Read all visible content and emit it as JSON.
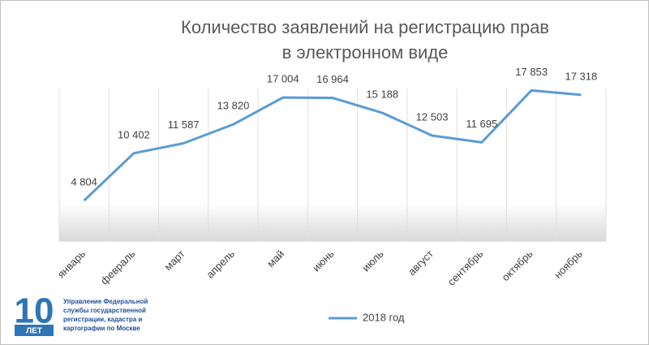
{
  "chart_data": {
    "type": "line",
    "title": [
      "Количество заявлений на регистрацию прав",
      "в электронном виде"
    ],
    "categories": [
      "январь",
      "февраль",
      "март",
      "апрель",
      "май",
      "июнь",
      "июль",
      "август",
      "сентябрь",
      "октябрь",
      "ноябрь"
    ],
    "series": [
      {
        "name": "2018 год",
        "color": "#5b9bd5",
        "values": [
          4804,
          10402,
          11587,
          13820,
          17004,
          16964,
          15188,
          12503,
          11695,
          17853,
          17318
        ],
        "value_labels": [
          "4 804",
          "10 402",
          "11 587",
          "13 820",
          "17 004",
          "16 964",
          "15 188",
          "12 503",
          "11 695",
          "17 853",
          "17 318"
        ]
      }
    ],
    "ylim": [
      0,
      20000
    ],
    "grid": true,
    "legend": "bottom"
  },
  "logo": {
    "number": "10",
    "badge": "ЛЕТ",
    "lines": [
      "Управление Федеральной",
      "службы государственной",
      "регистрации, кадастра и",
      "картографии по Москве"
    ]
  }
}
